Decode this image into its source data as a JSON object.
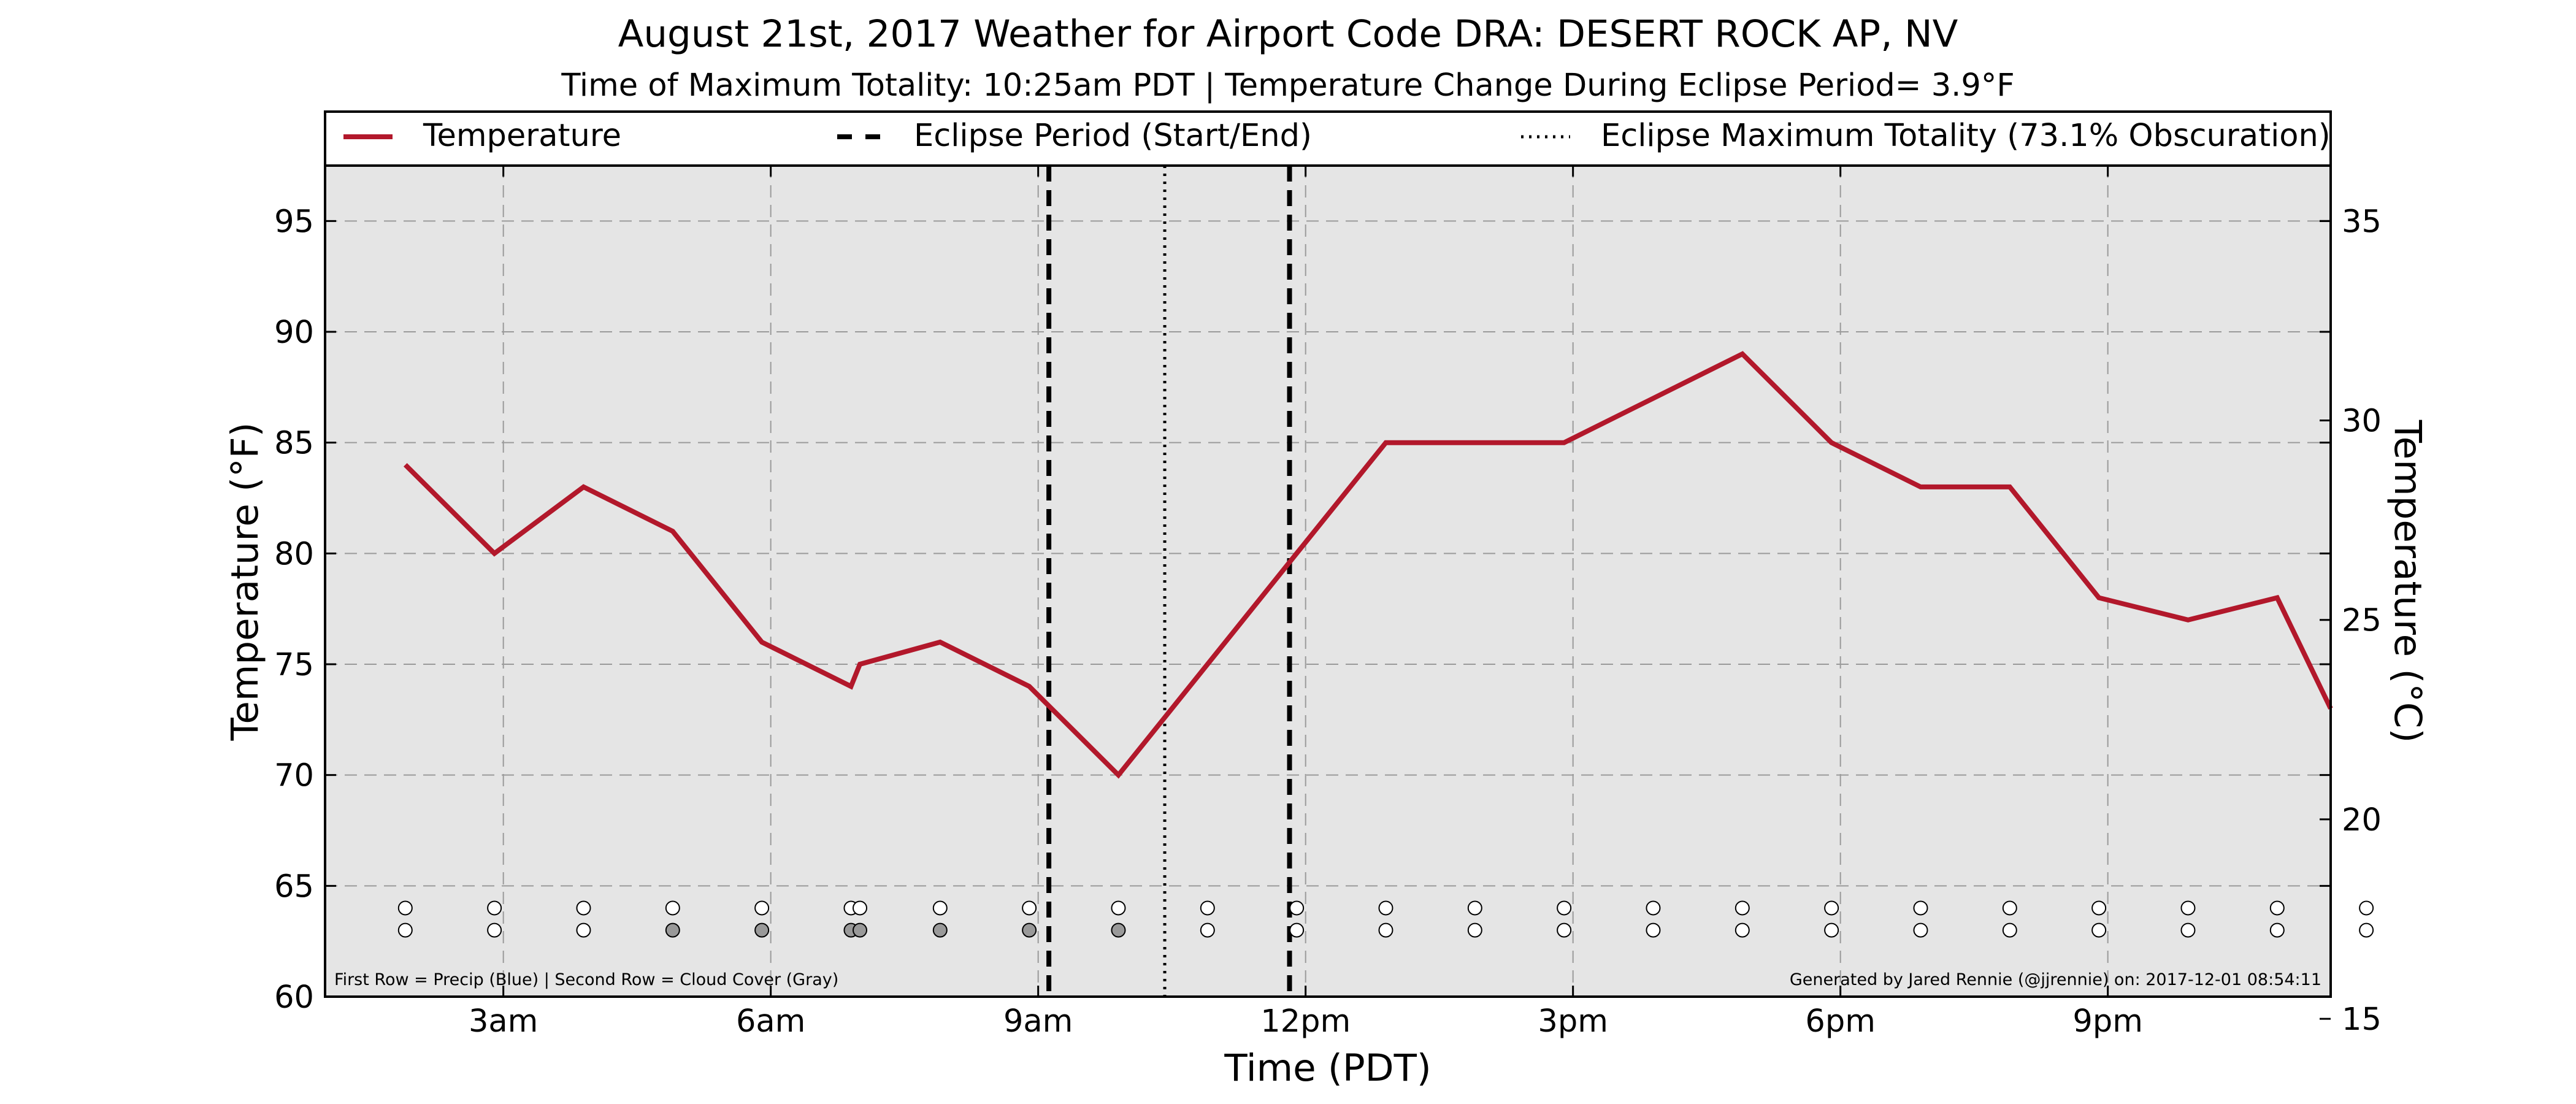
{
  "chart_data": {
    "type": "line",
    "title": "August 21st, 2017 Weather for Airport Code DRA: DESERT ROCK AP, NV",
    "subtitle": "Time of Maximum Totality: 10:25am PDT | Temperature Change During Eclipse Period= 3.9°F",
    "xlabel": "Time (PDT)",
    "ylabel": "Temperature (°F)",
    "ylabel_right": "Temperature (°C)",
    "xlim": [
      1,
      23.5
    ],
    "ylim": [
      60,
      97.5
    ],
    "ylim_right": [
      15.56,
      36.39
    ],
    "x_ticks": [
      {
        "x": 3,
        "label": "3am"
      },
      {
        "x": 6,
        "label": "6am"
      },
      {
        "x": 9,
        "label": "9am"
      },
      {
        "x": 12,
        "label": "12pm"
      },
      {
        "x": 15,
        "label": "3pm"
      },
      {
        "x": 18,
        "label": "6pm"
      },
      {
        "x": 21,
        "label": "9pm"
      }
    ],
    "y_ticks": [
      {
        "v": 60,
        "label": "60"
      },
      {
        "v": 65,
        "label": "65"
      },
      {
        "v": 70,
        "label": "70"
      },
      {
        "v": 75,
        "label": "75"
      },
      {
        "v": 80,
        "label": "80"
      },
      {
        "v": 85,
        "label": "85"
      },
      {
        "v": 90,
        "label": "90"
      },
      {
        "v": 95,
        "label": "95"
      }
    ],
    "y_ticks_right": [
      {
        "v": 15,
        "label": "15"
      },
      {
        "v": 20,
        "label": "20"
      },
      {
        "v": 25,
        "label": "25"
      },
      {
        "v": 30,
        "label": "30"
      },
      {
        "v": 35,
        "label": "35"
      }
    ],
    "grid": true,
    "series": [
      {
        "name": "Temperature",
        "color": "#b2182b",
        "x": [
          1.9,
          2.9,
          3.9,
          4.9,
          5.9,
          6.9,
          7.0,
          7.9,
          8.9,
          9.9,
          10.9,
          11.9,
          12.9,
          13.9,
          14.9,
          15.9,
          16.9,
          17.9,
          18.9,
          19.9,
          20.9,
          21.9,
          22.9,
          23.5
        ],
        "values": [
          84,
          80,
          83,
          81,
          76,
          74,
          75,
          76,
          74,
          70,
          75,
          80,
          85,
          85,
          85,
          87,
          89,
          85,
          83,
          83,
          78,
          77,
          78,
          73
        ]
      }
    ],
    "eclipse_start": 9.12,
    "eclipse_end": 11.82,
    "eclipse_max": 10.42,
    "legend": {
      "placement": "top",
      "entries": [
        {
          "label": "Temperature",
          "style": "solid",
          "color": "#b2182b"
        },
        {
          "label": "Eclipse Period (Start/End)",
          "style": "dashed",
          "color": "#000000"
        },
        {
          "label": "Eclipse Maximum Totality (73.1% Obscuration)",
          "style": "dotted",
          "color": "#000000"
        }
      ]
    },
    "markers": {
      "x": [
        1.9,
        2.9,
        3.9,
        4.9,
        5.9,
        6.9,
        7.0,
        7.9,
        8.9,
        9.9,
        10.9,
        11.9,
        12.9,
        13.9,
        14.9,
        15.9,
        16.9,
        17.9,
        18.9,
        19.9,
        20.9,
        21.9,
        22.9,
        23.9
      ],
      "precip_row_y": 64,
      "cloud_row_y": 63,
      "precip_colors": [
        "#ffffff",
        "#ffffff",
        "#ffffff",
        "#ffffff",
        "#ffffff",
        "#ffffff",
        "#ffffff",
        "#ffffff",
        "#ffffff",
        "#ffffff",
        "#ffffff",
        "#ffffff",
        "#ffffff",
        "#ffffff",
        "#ffffff",
        "#ffffff",
        "#ffffff",
        "#ffffff",
        "#ffffff",
        "#ffffff",
        "#ffffff",
        "#ffffff",
        "#ffffff",
        "#ffffff"
      ],
      "cloud_colors": [
        "#ffffff",
        "#ffffff",
        "#ffffff",
        "#999999",
        "#999999",
        "#999999",
        "#999999",
        "#999999",
        "#999999",
        "#999999",
        "#ffffff",
        "#ffffff",
        "#ffffff",
        "#ffffff",
        "#ffffff",
        "#ffffff",
        "#ffffff",
        "#ffffff",
        "#ffffff",
        "#ffffff",
        "#ffffff",
        "#ffffff",
        "#ffffff",
        "#ffffff"
      ]
    },
    "footnote_left": "First Row = Precip (Blue) | Second Row = Cloud Cover (Gray)",
    "footnote_right": "Generated by Jared Rennie (@jjrennie) on: 2017-12-01 08:54:11",
    "plot_background": "#e5e5e5"
  }
}
